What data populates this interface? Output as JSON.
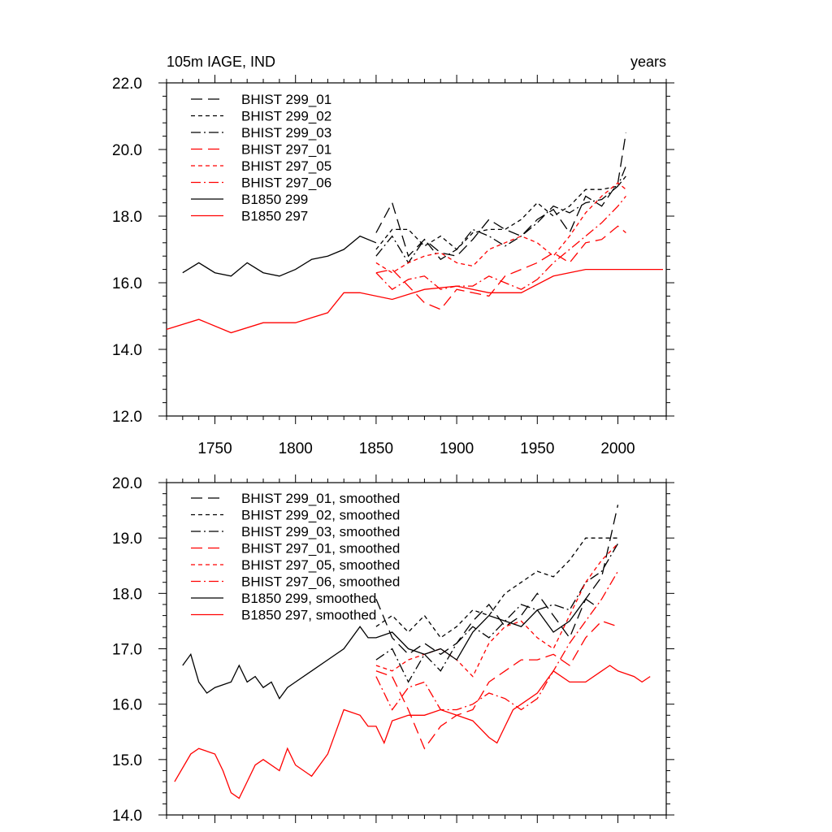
{
  "chart_data": [
    {
      "type": "line",
      "panel": "top",
      "title": "105m IAGE, IND",
      "units_label": "years",
      "xlim": [
        1720,
        2030
      ],
      "ylim": [
        12.0,
        22.0
      ],
      "x_ticks": [
        1750,
        1800,
        1850,
        1900,
        1950,
        2000
      ],
      "y_ticks": [
        "12.0",
        "14.0",
        "16.0",
        "18.0",
        "20.0",
        "22.0"
      ],
      "legend_position": "top-left",
      "series": [
        {
          "name": "BHIST 299_01",
          "color": "#000000",
          "dash": "long-dash",
          "x": [
            1850,
            1860,
            1870,
            1880,
            1890,
            1900,
            1910,
            1920,
            1930,
            1940,
            1950,
            1960,
            1970,
            1980,
            1990,
            2000,
            2005
          ],
          "y": [
            17.5,
            18.4,
            16.8,
            17.3,
            16.9,
            16.8,
            17.3,
            17.9,
            17.6,
            17.4,
            17.9,
            18.2,
            17.5,
            18.6,
            18.3,
            19.0,
            20.5
          ]
        },
        {
          "name": "BHIST 299_02",
          "color": "#000000",
          "dash": "short-dash",
          "x": [
            1850,
            1860,
            1870,
            1880,
            1890,
            1900,
            1910,
            1920,
            1930,
            1940,
            1950,
            1960,
            1970,
            1980,
            1990,
            2000,
            2005
          ],
          "y": [
            17.0,
            17.6,
            17.6,
            17.1,
            17.4,
            17.0,
            17.5,
            17.6,
            17.6,
            17.9,
            18.4,
            18.0,
            18.3,
            18.8,
            18.8,
            18.9,
            19.2
          ]
        },
        {
          "name": "BHIST 299_03",
          "color": "#000000",
          "dash": "dash-dot",
          "x": [
            1850,
            1860,
            1870,
            1880,
            1890,
            1900,
            1910,
            1920,
            1930,
            1940,
            1950,
            1960,
            1970,
            1980,
            1990,
            2000,
            2005
          ],
          "y": [
            16.8,
            17.4,
            16.6,
            17.3,
            16.7,
            17.0,
            17.6,
            17.4,
            17.1,
            17.4,
            17.8,
            18.3,
            18.1,
            18.4,
            18.5,
            18.9,
            19.5
          ]
        },
        {
          "name": "BHIST 297_01",
          "color": "#ff0000",
          "dash": "long-dash",
          "x": [
            1850,
            1860,
            1870,
            1880,
            1890,
            1900,
            1910,
            1920,
            1930,
            1940,
            1950,
            1960,
            1970,
            1980,
            1990,
            2000,
            2005
          ],
          "y": [
            16.3,
            16.4,
            15.9,
            15.4,
            15.2,
            15.8,
            15.7,
            15.6,
            16.2,
            16.4,
            16.6,
            16.9,
            16.6,
            17.2,
            17.3,
            17.7,
            17.5
          ]
        },
        {
          "name": "BHIST 297_05",
          "color": "#ff0000",
          "dash": "short-dash",
          "x": [
            1850,
            1860,
            1870,
            1880,
            1890,
            1900,
            1910,
            1920,
            1930,
            1940,
            1950,
            1960,
            1970,
            1980,
            1990,
            2000,
            2005
          ],
          "y": [
            16.6,
            16.3,
            16.6,
            16.8,
            16.9,
            16.6,
            16.5,
            17.0,
            17.2,
            17.4,
            17.2,
            16.8,
            17.4,
            18.1,
            18.6,
            19.0,
            18.8
          ]
        },
        {
          "name": "BHIST 297_06",
          "color": "#ff0000",
          "dash": "dash-dot",
          "x": [
            1850,
            1860,
            1870,
            1880,
            1890,
            1900,
            1910,
            1920,
            1930,
            1940,
            1950,
            1960,
            1970,
            1980,
            1990,
            2000,
            2005
          ],
          "y": [
            16.3,
            15.8,
            16.1,
            16.2,
            15.8,
            15.9,
            15.9,
            16.2,
            16.0,
            15.8,
            16.1,
            16.6,
            17.0,
            17.4,
            17.8,
            18.3,
            18.6
          ]
        },
        {
          "name": "B1850 299",
          "color": "#000000",
          "dash": "solid",
          "x": [
            1730,
            1740,
            1750,
            1760,
            1770,
            1780,
            1790,
            1800,
            1810,
            1820,
            1830,
            1840,
            1850
          ],
          "y": [
            16.3,
            16.6,
            16.3,
            16.2,
            16.6,
            16.3,
            16.2,
            16.4,
            16.7,
            16.8,
            17.0,
            17.4,
            17.2
          ]
        },
        {
          "name": "B1850 297",
          "color": "#ff0000",
          "dash": "solid",
          "x": [
            1720,
            1740,
            1760,
            1780,
            1800,
            1820,
            1830,
            1840,
            1860,
            1880,
            1900,
            1920,
            1940,
            1960,
            1980,
            2000,
            2020,
            2028
          ],
          "y": [
            14.6,
            14.9,
            14.5,
            14.8,
            14.8,
            15.1,
            15.7,
            15.7,
            15.5,
            15.8,
            15.9,
            15.7,
            15.7,
            16.2,
            16.4,
            16.4,
            16.4,
            16.4
          ]
        }
      ]
    },
    {
      "type": "line",
      "panel": "bottom",
      "xlim": [
        1720,
        2030
      ],
      "ylim": [
        14.0,
        20.0
      ],
      "y_ticks": [
        "14.0",
        "15.0",
        "16.0",
        "17.0",
        "18.0",
        "19.0",
        "20.0"
      ],
      "legend_position": "top-left",
      "series": [
        {
          "name": "BHIST 299_01, smoothed",
          "color": "#000000",
          "dash": "long-dash",
          "x": [
            1850,
            1860,
            1870,
            1880,
            1890,
            1900,
            1910,
            1920,
            1930,
            1940,
            1950,
            1960,
            1970,
            1980,
            1990,
            2000
          ],
          "y": [
            17.9,
            17.2,
            16.9,
            17.1,
            16.9,
            17.1,
            17.5,
            17.8,
            17.4,
            17.6,
            18.0,
            17.6,
            17.2,
            17.9,
            18.3,
            19.6
          ]
        },
        {
          "name": "BHIST 299_02, smoothed",
          "color": "#000000",
          "dash": "short-dash",
          "x": [
            1850,
            1860,
            1870,
            1880,
            1890,
            1900,
            1910,
            1920,
            1930,
            1940,
            1950,
            1960,
            1970,
            1980,
            1990,
            2000
          ],
          "y": [
            17.4,
            17.6,
            17.3,
            17.6,
            17.2,
            17.4,
            17.7,
            17.6,
            18.0,
            18.2,
            18.4,
            18.3,
            18.6,
            19.0,
            19.0,
            19.0
          ]
        },
        {
          "name": "BHIST 299_03, smoothed",
          "color": "#000000",
          "dash": "dash-dot",
          "x": [
            1850,
            1860,
            1870,
            1880,
            1890,
            1900,
            1910,
            1920,
            1930,
            1940,
            1950,
            1960,
            1970,
            1980,
            1990,
            2000
          ],
          "y": [
            16.8,
            17.0,
            16.4,
            16.9,
            16.6,
            17.1,
            17.4,
            17.2,
            17.5,
            17.8,
            17.7,
            17.8,
            17.7,
            18.2,
            18.4,
            18.9
          ]
        },
        {
          "name": "BHIST 297_01, smoothed",
          "color": "#ff0000",
          "dash": "long-dash",
          "x": [
            1850,
            1860,
            1870,
            1880,
            1890,
            1900,
            1910,
            1920,
            1930,
            1940,
            1950,
            1960,
            1970,
            1980,
            1990,
            2000
          ],
          "y": [
            16.6,
            16.5,
            15.9,
            15.2,
            15.6,
            15.8,
            15.9,
            16.4,
            16.6,
            16.8,
            16.8,
            16.9,
            16.7,
            17.2,
            17.5,
            17.4
          ]
        },
        {
          "name": "BHIST 297_05, smoothed",
          "color": "#ff0000",
          "dash": "short-dash",
          "x": [
            1850,
            1860,
            1870,
            1880,
            1890,
            1900,
            1910,
            1920,
            1930,
            1940,
            1950,
            1960,
            1970,
            1980,
            1990,
            2000
          ],
          "y": [
            16.7,
            16.6,
            16.8,
            16.9,
            17.0,
            16.8,
            16.5,
            17.1,
            17.4,
            17.5,
            17.2,
            17.0,
            17.6,
            18.2,
            18.6,
            18.9
          ]
        },
        {
          "name": "BHIST 297_06, smoothed",
          "color": "#ff0000",
          "dash": "dash-dot",
          "x": [
            1850,
            1860,
            1870,
            1880,
            1890,
            1900,
            1910,
            1920,
            1930,
            1940,
            1950,
            1960,
            1970,
            1980,
            1990,
            2000
          ],
          "y": [
            16.5,
            15.9,
            16.3,
            16.4,
            15.9,
            15.9,
            16.0,
            16.2,
            16.1,
            15.9,
            16.1,
            16.6,
            17.1,
            17.5,
            17.9,
            18.4
          ]
        },
        {
          "name": "B1850 299, smoothed",
          "color": "#000000",
          "dash": "solid",
          "x": [
            1730,
            1735,
            1740,
            1745,
            1750,
            1760,
            1765,
            1770,
            1775,
            1780,
            1785,
            1790,
            1795,
            1800,
            1810,
            1820,
            1830,
            1840,
            1845,
            1850,
            1860,
            1870,
            1880,
            1890,
            1900,
            1910,
            1920,
            1930,
            1940,
            1950,
            1960,
            1970,
            1980,
            1985
          ],
          "y": [
            16.7,
            16.9,
            16.4,
            16.2,
            16.3,
            16.4,
            16.7,
            16.4,
            16.5,
            16.3,
            16.4,
            16.1,
            16.3,
            16.4,
            16.6,
            16.8,
            17.0,
            17.4,
            17.2,
            17.2,
            17.3,
            17.0,
            16.9,
            17.0,
            16.8,
            17.3,
            17.6,
            17.5,
            17.4,
            17.7,
            17.3,
            17.5,
            17.9,
            17.8
          ]
        },
        {
          "name": "B1850 297, smoothed",
          "color": "#ff0000",
          "dash": "solid",
          "x": [
            1725,
            1735,
            1740,
            1750,
            1755,
            1760,
            1765,
            1770,
            1775,
            1780,
            1790,
            1795,
            1800,
            1810,
            1820,
            1825,
            1830,
            1840,
            1845,
            1850,
            1855,
            1860,
            1870,
            1880,
            1890,
            1900,
            1910,
            1920,
            1925,
            1930,
            1935,
            1940,
            1950,
            1960,
            1970,
            1980,
            1990,
            1995,
            2000,
            2010,
            2015,
            2020
          ],
          "y": [
            14.6,
            15.1,
            15.2,
            15.1,
            14.8,
            14.4,
            14.3,
            14.6,
            14.9,
            15.0,
            14.8,
            15.2,
            14.9,
            14.7,
            15.1,
            15.5,
            15.9,
            15.8,
            15.6,
            15.6,
            15.3,
            15.7,
            15.8,
            15.8,
            15.9,
            15.8,
            15.7,
            15.4,
            15.3,
            15.6,
            15.9,
            16.0,
            16.2,
            16.6,
            16.4,
            16.4,
            16.6,
            16.7,
            16.6,
            16.5,
            16.4,
            16.5
          ]
        }
      ]
    }
  ]
}
